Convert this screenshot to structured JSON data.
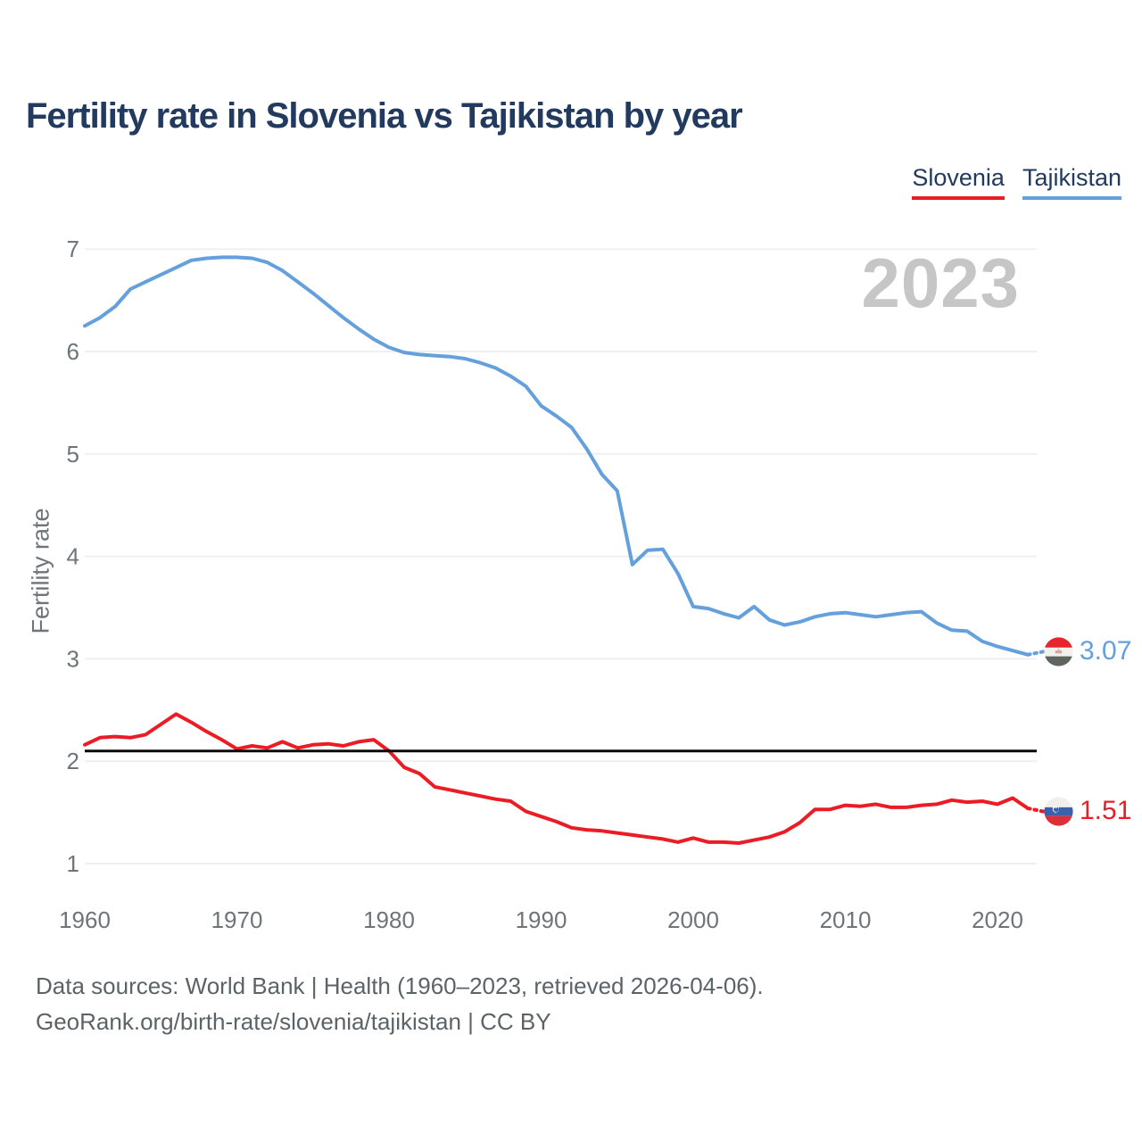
{
  "header": {
    "title": "Fertility rate in Slovenia vs Tajikistan by year"
  },
  "legend": {
    "items": [
      {
        "label": "Slovenia",
        "color": "#ec1c24"
      },
      {
        "label": "Tajikistan",
        "color": "#63a0dc"
      }
    ]
  },
  "watermark": "2023",
  "y_axis_title": "Fertility rate",
  "footer": {
    "line1": "Data sources: World Bank | Health (1960–2023, retrieved 2026-04-06).",
    "line2": "GeoRank.org/birth-rate/slovenia/tajikistan | CC BY"
  },
  "chart_data": {
    "type": "line",
    "title": "Fertility rate in Slovenia vs Tajikistan by year",
    "xlabel": "",
    "ylabel": "Fertility rate",
    "watermark": "2023",
    "grid": "horizontal",
    "legend_position": "top-right",
    "x_range": [
      1960,
      2023
    ],
    "ylim": [
      1,
      7
    ],
    "y_ticks": [
      1,
      2,
      3,
      4,
      5,
      6,
      7
    ],
    "x_ticks": [
      1960,
      1970,
      1980,
      1990,
      2000,
      2010,
      2020
    ],
    "threshold_line": {
      "value": 2.1,
      "color": "#0a0a0a"
    },
    "years": [
      1960,
      1961,
      1962,
      1963,
      1964,
      1965,
      1966,
      1967,
      1968,
      1969,
      1970,
      1971,
      1972,
      1973,
      1974,
      1975,
      1976,
      1977,
      1978,
      1979,
      1980,
      1981,
      1982,
      1983,
      1984,
      1985,
      1986,
      1987,
      1988,
      1989,
      1990,
      1991,
      1992,
      1993,
      1994,
      1995,
      1996,
      1997,
      1998,
      1999,
      2000,
      2001,
      2002,
      2003,
      2004,
      2005,
      2006,
      2007,
      2008,
      2009,
      2010,
      2011,
      2012,
      2013,
      2014,
      2015,
      2016,
      2017,
      2018,
      2019,
      2020,
      2021,
      2022,
      2023
    ],
    "series": [
      {
        "name": "Slovenia",
        "color": "#ec1c24",
        "end_label": "1.51",
        "end_value": 1.51,
        "dashed_tail_from": 2022,
        "flag": "slovenia-flag-icon",
        "values": [
          2.16,
          2.23,
          2.24,
          2.23,
          2.26,
          2.36,
          2.46,
          2.38,
          2.29,
          2.21,
          2.12,
          2.15,
          2.13,
          2.19,
          2.13,
          2.16,
          2.17,
          2.15,
          2.19,
          2.21,
          2.1,
          1.94,
          1.88,
          1.75,
          1.72,
          1.69,
          1.66,
          1.63,
          1.61,
          1.51,
          1.46,
          1.41,
          1.35,
          1.33,
          1.32,
          1.3,
          1.28,
          1.26,
          1.24,
          1.21,
          1.25,
          1.21,
          1.21,
          1.2,
          1.23,
          1.26,
          1.31,
          1.4,
          1.53,
          1.53,
          1.57,
          1.56,
          1.58,
          1.55,
          1.55,
          1.57,
          1.58,
          1.62,
          1.6,
          1.61,
          1.58,
          1.64,
          1.54,
          1.51
        ]
      },
      {
        "name": "Tajikistan",
        "color": "#63a0dc",
        "end_label": "3.07",
        "end_value": 3.07,
        "dashed_tail_from": 2022,
        "flag": "tajikistan-flag-icon",
        "values": [
          6.25,
          6.33,
          6.44,
          6.61,
          6.68,
          6.75,
          6.82,
          6.89,
          6.91,
          6.92,
          6.92,
          6.91,
          6.87,
          6.79,
          6.68,
          6.57,
          6.45,
          6.33,
          6.22,
          6.12,
          6.04,
          5.99,
          5.97,
          5.96,
          5.95,
          5.93,
          5.89,
          5.84,
          5.76,
          5.66,
          5.47,
          5.37,
          5.26,
          5.05,
          4.8,
          4.64,
          3.92,
          4.06,
          4.07,
          3.83,
          3.51,
          3.49,
          3.44,
          3.4,
          3.51,
          3.38,
          3.33,
          3.36,
          3.41,
          3.44,
          3.45,
          3.43,
          3.41,
          3.43,
          3.45,
          3.46,
          3.35,
          3.28,
          3.27,
          3.17,
          3.12,
          3.08,
          3.04,
          3.07
        ]
      }
    ]
  }
}
